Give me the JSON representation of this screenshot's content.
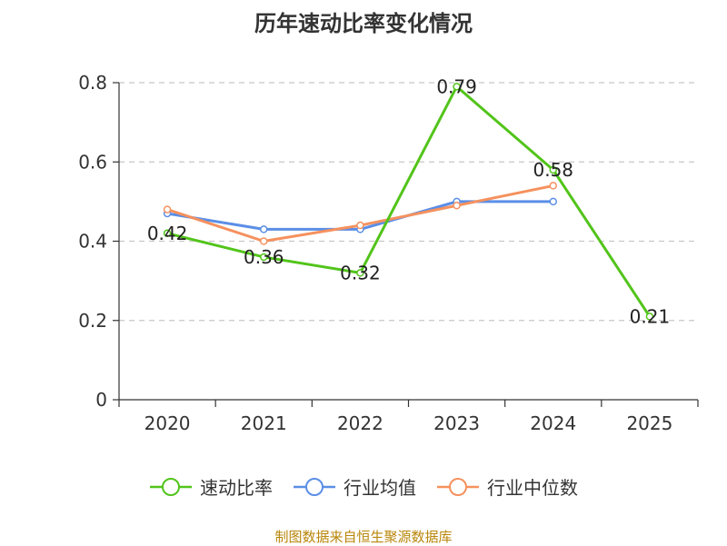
{
  "chart_data": {
    "type": "line",
    "title": "历年速动比率变化情况",
    "categories": [
      "2020",
      "2021",
      "2022",
      "2023",
      "2024",
      "2025"
    ],
    "yticks": [
      "0",
      "0.2",
      "0.4",
      "0.6",
      "0.8"
    ],
    "ylim": [
      0,
      0.8
    ],
    "grid": true,
    "legend_position": "bottom",
    "series": [
      {
        "name": "速动比率",
        "color": "#52c41a",
        "values": [
          0.42,
          0.36,
          0.32,
          0.79,
          0.58,
          0.21
        ],
        "labels": [
          "0.42",
          "0.36",
          "0.32",
          "0.79",
          "0.58",
          "0.21"
        ]
      },
      {
        "name": "行业均值",
        "color": "#5b8ee6",
        "values": [
          0.47,
          0.43,
          0.43,
          0.5,
          0.5,
          null
        ]
      },
      {
        "name": "行业中位数",
        "color": "#f5915e",
        "values": [
          0.48,
          0.4,
          0.44,
          0.49,
          0.54,
          null
        ]
      }
    ]
  },
  "source_note": "制图数据来自恒生聚源数据库"
}
